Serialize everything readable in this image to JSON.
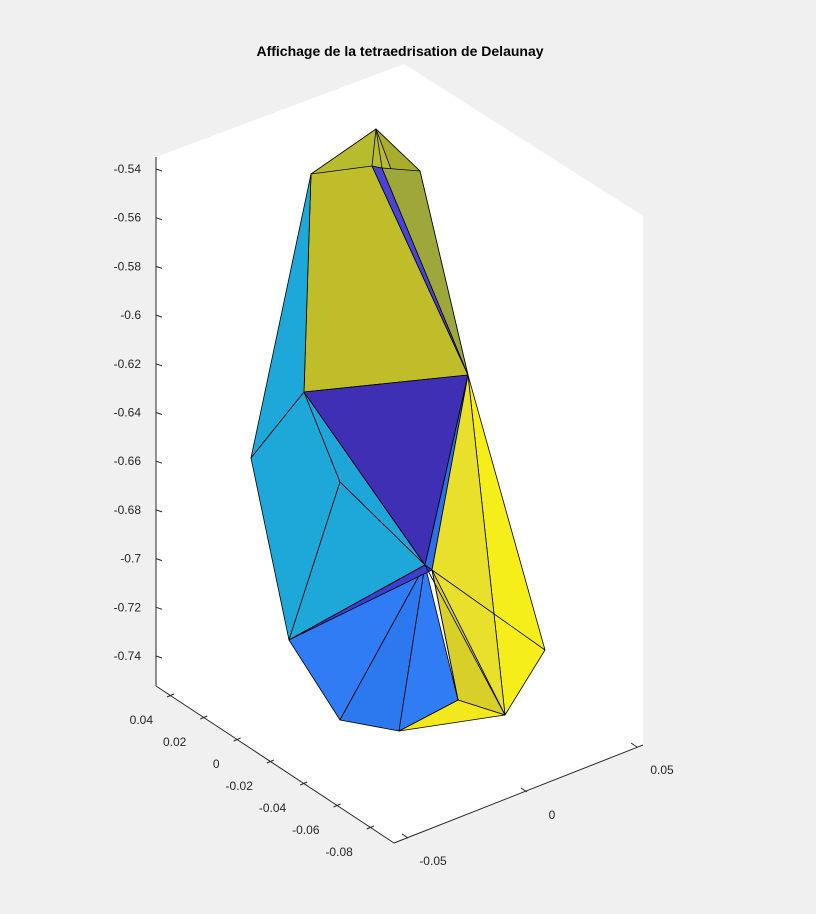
{
  "chart_data": {
    "type": "3d-surface",
    "title": "Affichage de la tetraedrisation de Delaunay",
    "z_ticks": [
      "-0.54",
      "-0.56",
      "-0.58",
      "-0.6",
      "-0.62",
      "-0.64",
      "-0.66",
      "-0.68",
      "-0.7",
      "-0.72",
      "-0.74"
    ],
    "y_ticks": [
      "0.04",
      "0.02",
      "0",
      "-0.02",
      "-0.04",
      "-0.06",
      "-0.08"
    ],
    "x_ticks": [
      "0.05",
      "0",
      "-0.05"
    ],
    "grid": false,
    "colors": {
      "background": "#f0f0f0",
      "axes": "#ffffff",
      "olive": "#bfbe2a",
      "olive_dark": "#a8ad2d",
      "cyan": "#1ea8da",
      "indigo": "#3f2fb5",
      "blue": "#2f7cf4",
      "yellow": "#f5ee1a",
      "yellow_dark": "#d8cf28"
    }
  }
}
